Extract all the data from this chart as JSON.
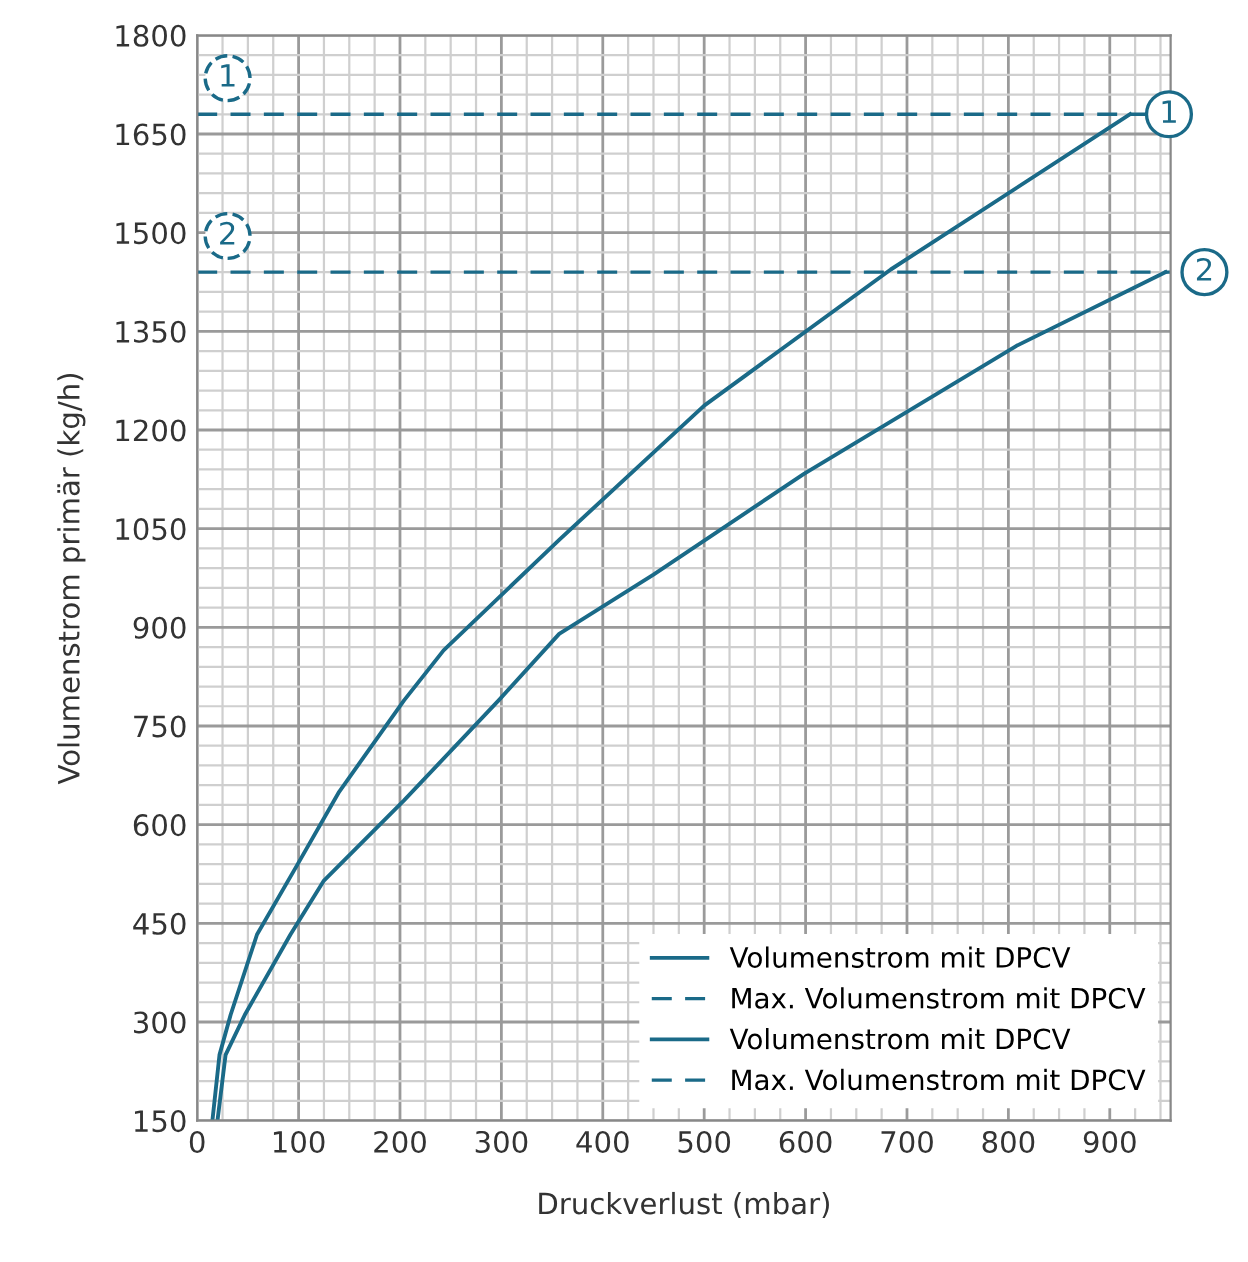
{
  "chart_data": {
    "type": "line",
    "xlabel": "Druckverlust (mbar)",
    "ylabel": "Volumenstrom primär (kg/h)",
    "xlim": [
      0,
      960
    ],
    "xticks": [
      0,
      100,
      200,
      300,
      400,
      500,
      600,
      700,
      800,
      900
    ],
    "ylim": [
      150,
      1800
    ],
    "yticks": [
      150,
      300,
      450,
      600,
      750,
      900,
      1050,
      1200,
      1350,
      1500,
      1650,
      1800
    ],
    "grid": true,
    "legend": "bottom right",
    "line_style": "solid",
    "marker": "none",
    "series": [
      {
        "name": "Volumenstrom mit DPCV",
        "color": "#1a6a88",
        "x": [
          15,
          22,
          33,
          59,
          98,
          140,
          204,
          243,
          357,
          500,
          684,
          920
        ],
        "values": [
          150,
          250,
          311,
          433,
          537,
          650,
          789,
          865,
          1033,
          1237,
          1444,
          1680
        ]
      },
      {
        "name": "Volumenstrom mit DPCV",
        "color": "#1a6a88",
        "x": [
          20,
          28,
          47,
          92,
          125,
          204,
          298,
          357,
          450,
          598,
          808,
          955
        ],
        "values": [
          150,
          250,
          311,
          433,
          515,
          637,
          790,
          890,
          980,
          1133,
          1328,
          1440
        ]
      }
    ],
    "ref_lines": [
      {
        "axis": "y",
        "value": 1680,
        "label": "Max. Volumenstrom mit DPCV",
        "color": "#1a6a88",
        "line_style": "dashed"
      },
      {
        "axis": "y",
        "value": 1440,
        "label": "Max. Volumenstrom mit DPCV",
        "color": "#1a6a88",
        "line_style": "dashed"
      }
    ],
    "annotations": [
      {
        "text": "1",
        "x": 920,
        "y": 1680
      },
      {
        "text": "2",
        "x": 955,
        "y": 1440
      },
      {
        "text": "1",
        "x": 30,
        "y": 1680
      },
      {
        "text": "2",
        "x": 30,
        "y": 1440
      }
    ]
  }
}
